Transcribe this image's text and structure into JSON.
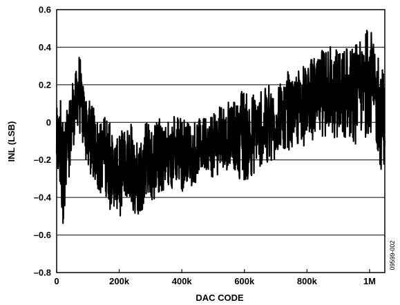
{
  "chart_data": {
    "type": "line",
    "title": "",
    "xlabel": "DAC CODE",
    "ylabel": "INL (LSB)",
    "figure_id": "09599-002",
    "xlim": [
      0,
      1048575
    ],
    "ylim": [
      -0.8,
      0.6
    ],
    "x_ticks": [
      0,
      200000,
      400000,
      600000,
      800000,
      1000000
    ],
    "x_tick_labels": [
      "0",
      "200k",
      "400k",
      "600k",
      "800k",
      "1M"
    ],
    "y_ticks": [
      -0.8,
      -0.6,
      -0.4,
      -0.2,
      0,
      0.2,
      0.4,
      0.6
    ],
    "y_tick_labels": [
      "–0.8",
      "–0.6",
      "–0.4",
      "–0.2",
      "0",
      "0.2",
      "0.4",
      "0.6"
    ],
    "grid": "horizontal",
    "line_color": "#000000",
    "series": [
      {
        "x": [
          0,
          10000,
          20000,
          30000,
          40000,
          50000,
          60000,
          70000,
          80000,
          90000,
          100000,
          120000,
          140000,
          160000,
          180000,
          200000,
          220000,
          240000,
          260000,
          280000,
          300000,
          320000,
          340000,
          360000,
          380000,
          400000,
          420000,
          440000,
          460000,
          480000,
          500000,
          520000,
          540000,
          560000,
          580000,
          600000,
          620000,
          640000,
          660000,
          680000,
          700000,
          720000,
          740000,
          760000,
          780000,
          800000,
          820000,
          840000,
          860000,
          880000,
          900000,
          920000,
          940000,
          960000,
          980000,
          1000000,
          1020000,
          1040000,
          1048575
        ],
        "upper": [
          0.12,
          0.15,
          0.1,
          0.05,
          0.15,
          0.22,
          0.3,
          0.4,
          0.28,
          0.2,
          0.15,
          0.08,
          0.05,
          0.02,
          -0.02,
          -0.05,
          -0.03,
          0.0,
          -0.05,
          0.0,
          0.02,
          0.0,
          0.05,
          0.0,
          0.05,
          0.02,
          0.05,
          0.02,
          0.03,
          0.02,
          0.05,
          0.08,
          0.1,
          0.12,
          0.15,
          0.18,
          0.15,
          0.2,
          0.18,
          0.2,
          0.22,
          0.2,
          0.28,
          0.25,
          0.3,
          0.3,
          0.35,
          0.4,
          0.38,
          0.42,
          0.4,
          0.4,
          0.38,
          0.42,
          0.45,
          0.52,
          0.4,
          0.3,
          0.25
        ],
        "lower": [
          -0.32,
          -0.45,
          -0.63,
          -0.35,
          -0.3,
          -0.2,
          -0.12,
          -0.05,
          -0.1,
          -0.18,
          -0.25,
          -0.32,
          -0.38,
          -0.45,
          -0.5,
          -0.52,
          -0.45,
          -0.48,
          -0.5,
          -0.45,
          -0.42,
          -0.4,
          -0.38,
          -0.35,
          -0.36,
          -0.37,
          -0.35,
          -0.33,
          -0.3,
          -0.28,
          -0.3,
          -0.27,
          -0.28,
          -0.25,
          -0.3,
          -0.38,
          -0.3,
          -0.25,
          -0.25,
          -0.2,
          -0.22,
          -0.15,
          -0.15,
          -0.12,
          -0.15,
          -0.1,
          -0.12,
          -0.15,
          -0.1,
          -0.08,
          -0.12,
          -0.1,
          -0.08,
          -0.15,
          -0.1,
          -0.05,
          -0.18,
          -0.35,
          -0.25
        ]
      }
    ]
  }
}
